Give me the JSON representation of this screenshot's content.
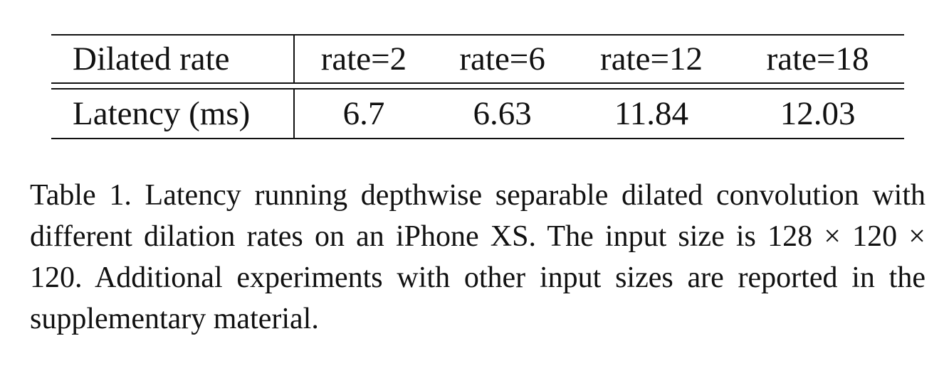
{
  "table": {
    "header": {
      "stub": "Dilated rate",
      "columns": [
        "rate=2",
        "rate=6",
        "rate=12",
        "rate=18"
      ]
    },
    "rows": [
      {
        "label": "Latency (ms)",
        "values": [
          "6.7",
          "6.63",
          "11.84",
          "12.03"
        ]
      }
    ]
  },
  "caption": {
    "text": "Table 1. Latency running depthwise separable dilated convolution with different dilation rates on an iPhone XS. The input size is 128 × 120 × 120. Additional experiments with other input sizes are reported in the supplementary material."
  }
}
